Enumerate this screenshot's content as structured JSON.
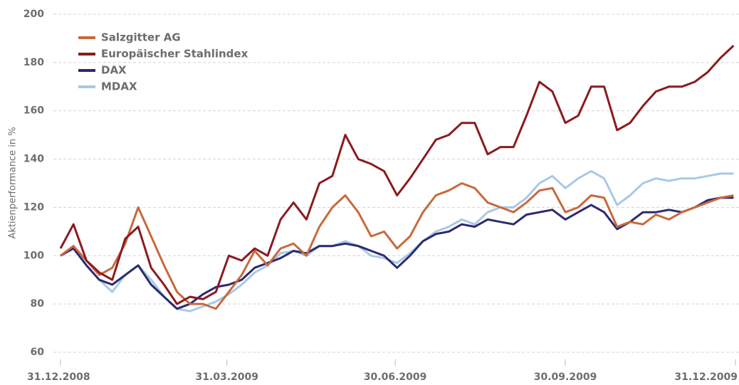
{
  "chart_data": {
    "type": "line",
    "ylabel": "Aktienperformance in %",
    "x": [
      "31.12.2008",
      "07.01.2009",
      "14.01.2009",
      "21.01.2009",
      "28.01.2009",
      "04.02.2009",
      "11.02.2009",
      "18.02.2009",
      "25.02.2009",
      "04.03.2009",
      "11.03.2009",
      "18.03.2009",
      "25.03.2009",
      "01.04.2009",
      "08.04.2009",
      "15.04.2009",
      "22.04.2009",
      "29.04.2009",
      "06.05.2009",
      "13.05.2009",
      "20.05.2009",
      "27.05.2009",
      "03.06.2009",
      "10.06.2009",
      "17.06.2009",
      "24.06.2009",
      "01.07.2009",
      "08.07.2009",
      "15.07.2009",
      "22.07.2009",
      "29.07.2009",
      "05.08.2009",
      "12.08.2009",
      "19.08.2009",
      "26.08.2009",
      "02.09.2009",
      "09.09.2009",
      "16.09.2009",
      "23.09.2009",
      "30.09.2009",
      "07.10.2009",
      "14.10.2009",
      "21.10.2009",
      "28.10.2009",
      "04.11.2009",
      "11.11.2009",
      "18.11.2009",
      "25.11.2009",
      "02.12.2009",
      "09.12.2009",
      "16.12.2009",
      "23.12.2009",
      "30.12.2009"
    ],
    "series": [
      {
        "name": "Salzgitter AG",
        "color": "#c8693c",
        "values": [
          100,
          104,
          98,
          92,
          95,
          105,
          120,
          108,
          96,
          85,
          80,
          80,
          78,
          85,
          92,
          102,
          96,
          103,
          105,
          100,
          112,
          120,
          125,
          118,
          108,
          110,
          103,
          108,
          118,
          125,
          127,
          130,
          128,
          122,
          120,
          118,
          122,
          127,
          128,
          118,
          120,
          125,
          124,
          112,
          114,
          113,
          117,
          115,
          118,
          120,
          122,
          124,
          125
        ]
      },
      {
        "name": "Europäischer Stahlindex",
        "color": "#8b1a1f",
        "values": [
          103,
          113,
          98,
          93,
          90,
          107,
          112,
          95,
          88,
          80,
          83,
          82,
          85,
          100,
          98,
          103,
          100,
          115,
          122,
          115,
          130,
          133,
          150,
          140,
          138,
          135,
          125,
          132,
          140,
          148,
          150,
          155,
          155,
          142,
          145,
          145,
          158,
          172,
          168,
          155,
          158,
          170,
          170,
          152,
          155,
          162,
          168,
          170,
          170,
          172,
          176,
          182,
          187
        ]
      },
      {
        "name": "DAX",
        "color": "#2b2a6e",
        "values": [
          100,
          103,
          96,
          90,
          88,
          92,
          96,
          88,
          83,
          78,
          80,
          84,
          87,
          88,
          90,
          95,
          97,
          99,
          102,
          101,
          104,
          104,
          105,
          104,
          102,
          100,
          95,
          100,
          106,
          109,
          110,
          113,
          112,
          115,
          114,
          113,
          117,
          118,
          119,
          115,
          118,
          121,
          118,
          111,
          114,
          118,
          118,
          119,
          118,
          120,
          123,
          124,
          124
        ]
      },
      {
        "name": "MDAX",
        "color": "#a9c8e6",
        "values": [
          100,
          104,
          96,
          90,
          85,
          92,
          96,
          90,
          83,
          78,
          77,
          79,
          81,
          84,
          88,
          93,
          96,
          101,
          102,
          100,
          104,
          104,
          106,
          104,
          100,
          99,
          97,
          101,
          106,
          110,
          112,
          115,
          113,
          118,
          120,
          120,
          124,
          130,
          133,
          128,
          132,
          135,
          132,
          121,
          125,
          130,
          132,
          131,
          132,
          132,
          133,
          134,
          134
        ]
      }
    ],
    "xlim": [
      "31.12.2008",
      "31.12.2009"
    ],
    "xticks": [
      "31.12.2008",
      "31.03.2009",
      "30.06.2009",
      "30.09.2009",
      "31.12.2009"
    ],
    "ylim": [
      60,
      200
    ],
    "yticks": [
      60,
      80,
      100,
      120,
      140,
      160,
      180,
      200
    ],
    "grid": true
  }
}
